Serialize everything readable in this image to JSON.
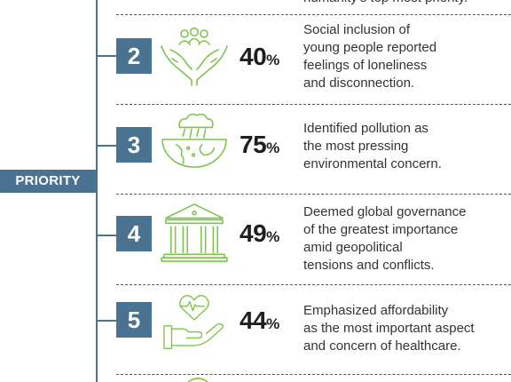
{
  "sidebar": {
    "label": "PRIORITY",
    "accent": "#4a7391"
  },
  "top_partial_text": "humanity's top most priority.",
  "icon_color": "#7dc44b",
  "items": [
    {
      "rank": "2",
      "value": "40",
      "unit": "%",
      "icon": "hands-people-icon",
      "lines": [
        "Social inclusion of",
        "young people reported",
        "feelings of loneliness",
        "and disconnection."
      ]
    },
    {
      "rank": "3",
      "value": "75",
      "unit": "%",
      "icon": "polluted-earth-icon",
      "lines": [
        "Identified pollution as",
        "the most pressing",
        "environmental concern."
      ]
    },
    {
      "rank": "4",
      "value": "49",
      "unit": "%",
      "icon": "government-building-icon",
      "lines": [
        "Deemed global governance",
        "of the greatest importance",
        "amid geopolitical",
        "tensions and conflicts."
      ]
    },
    {
      "rank": "5",
      "value": "44",
      "unit": "%",
      "icon": "healthcare-hand-heart-icon",
      "lines": [
        "Emphasized affordability",
        "as the most important aspect",
        "and concern of healthcare."
      ]
    }
  ]
}
